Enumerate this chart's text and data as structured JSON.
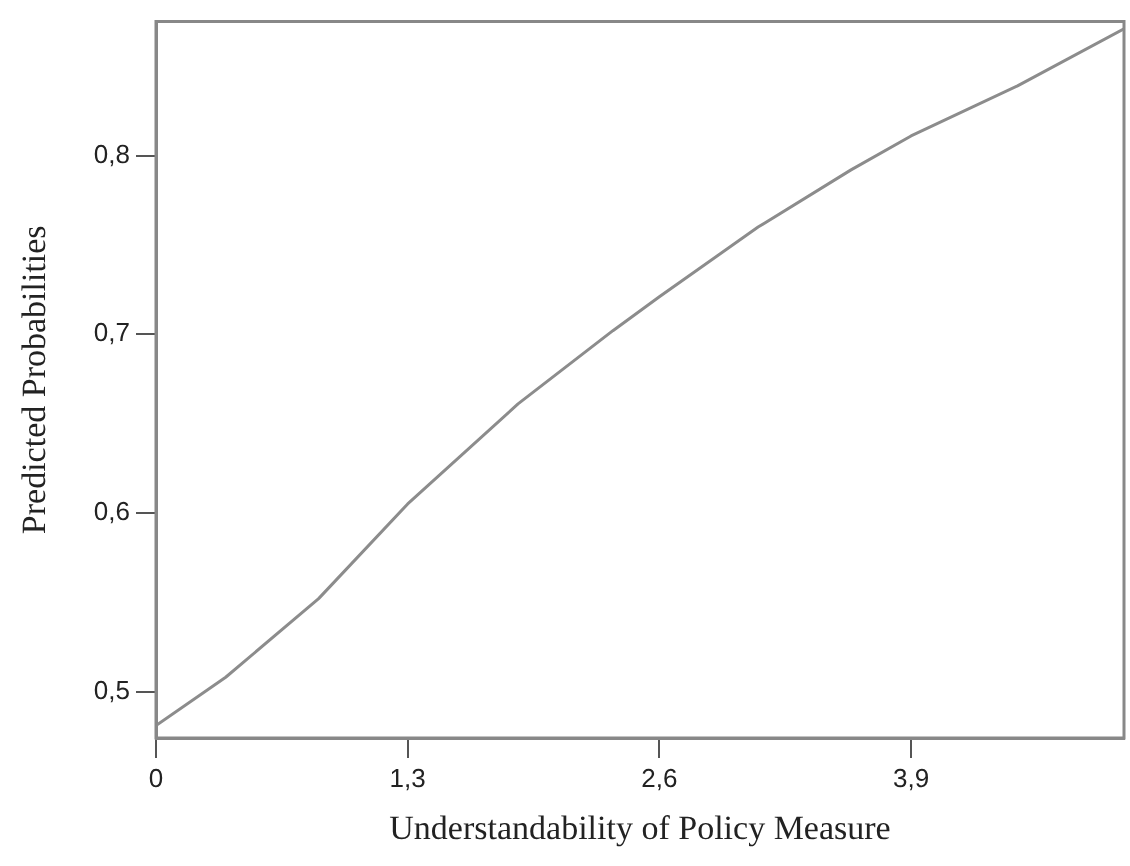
{
  "chart_data": {
    "type": "line",
    "xlabel": "Understandability of Policy Measure",
    "ylabel": "Predicted Probabilities",
    "x": [
      0,
      0.36,
      0.84,
      1.3,
      1.87,
      2.36,
      2.6,
      3.11,
      3.59,
      3.9,
      4.45,
      5
    ],
    "values": [
      0.481,
      0.508,
      0.552,
      0.605,
      0.661,
      0.702,
      0.721,
      0.76,
      0.792,
      0.811,
      0.839,
      0.871
    ],
    "color": "#8c8c8c",
    "marker": "none",
    "grid": false,
    "legend": false,
    "xlim": [
      0,
      5
    ],
    "xticks": [
      0,
      {
        "value": 1.3,
        "label": "1,3"
      },
      {
        "value": 2.6,
        "label": "2,6"
      },
      {
        "value": 3.9,
        "label": "3,9"
      }
    ],
    "ylim": [
      0.474,
      0.875
    ],
    "yticks": [
      {
        "value": 0.5,
        "label": "0,5"
      },
      {
        "value": 0.6,
        "label": "0,6"
      },
      {
        "value": 0.7,
        "label": "0,7"
      },
      {
        "value": 0.8,
        "label": "0,8"
      }
    ]
  }
}
